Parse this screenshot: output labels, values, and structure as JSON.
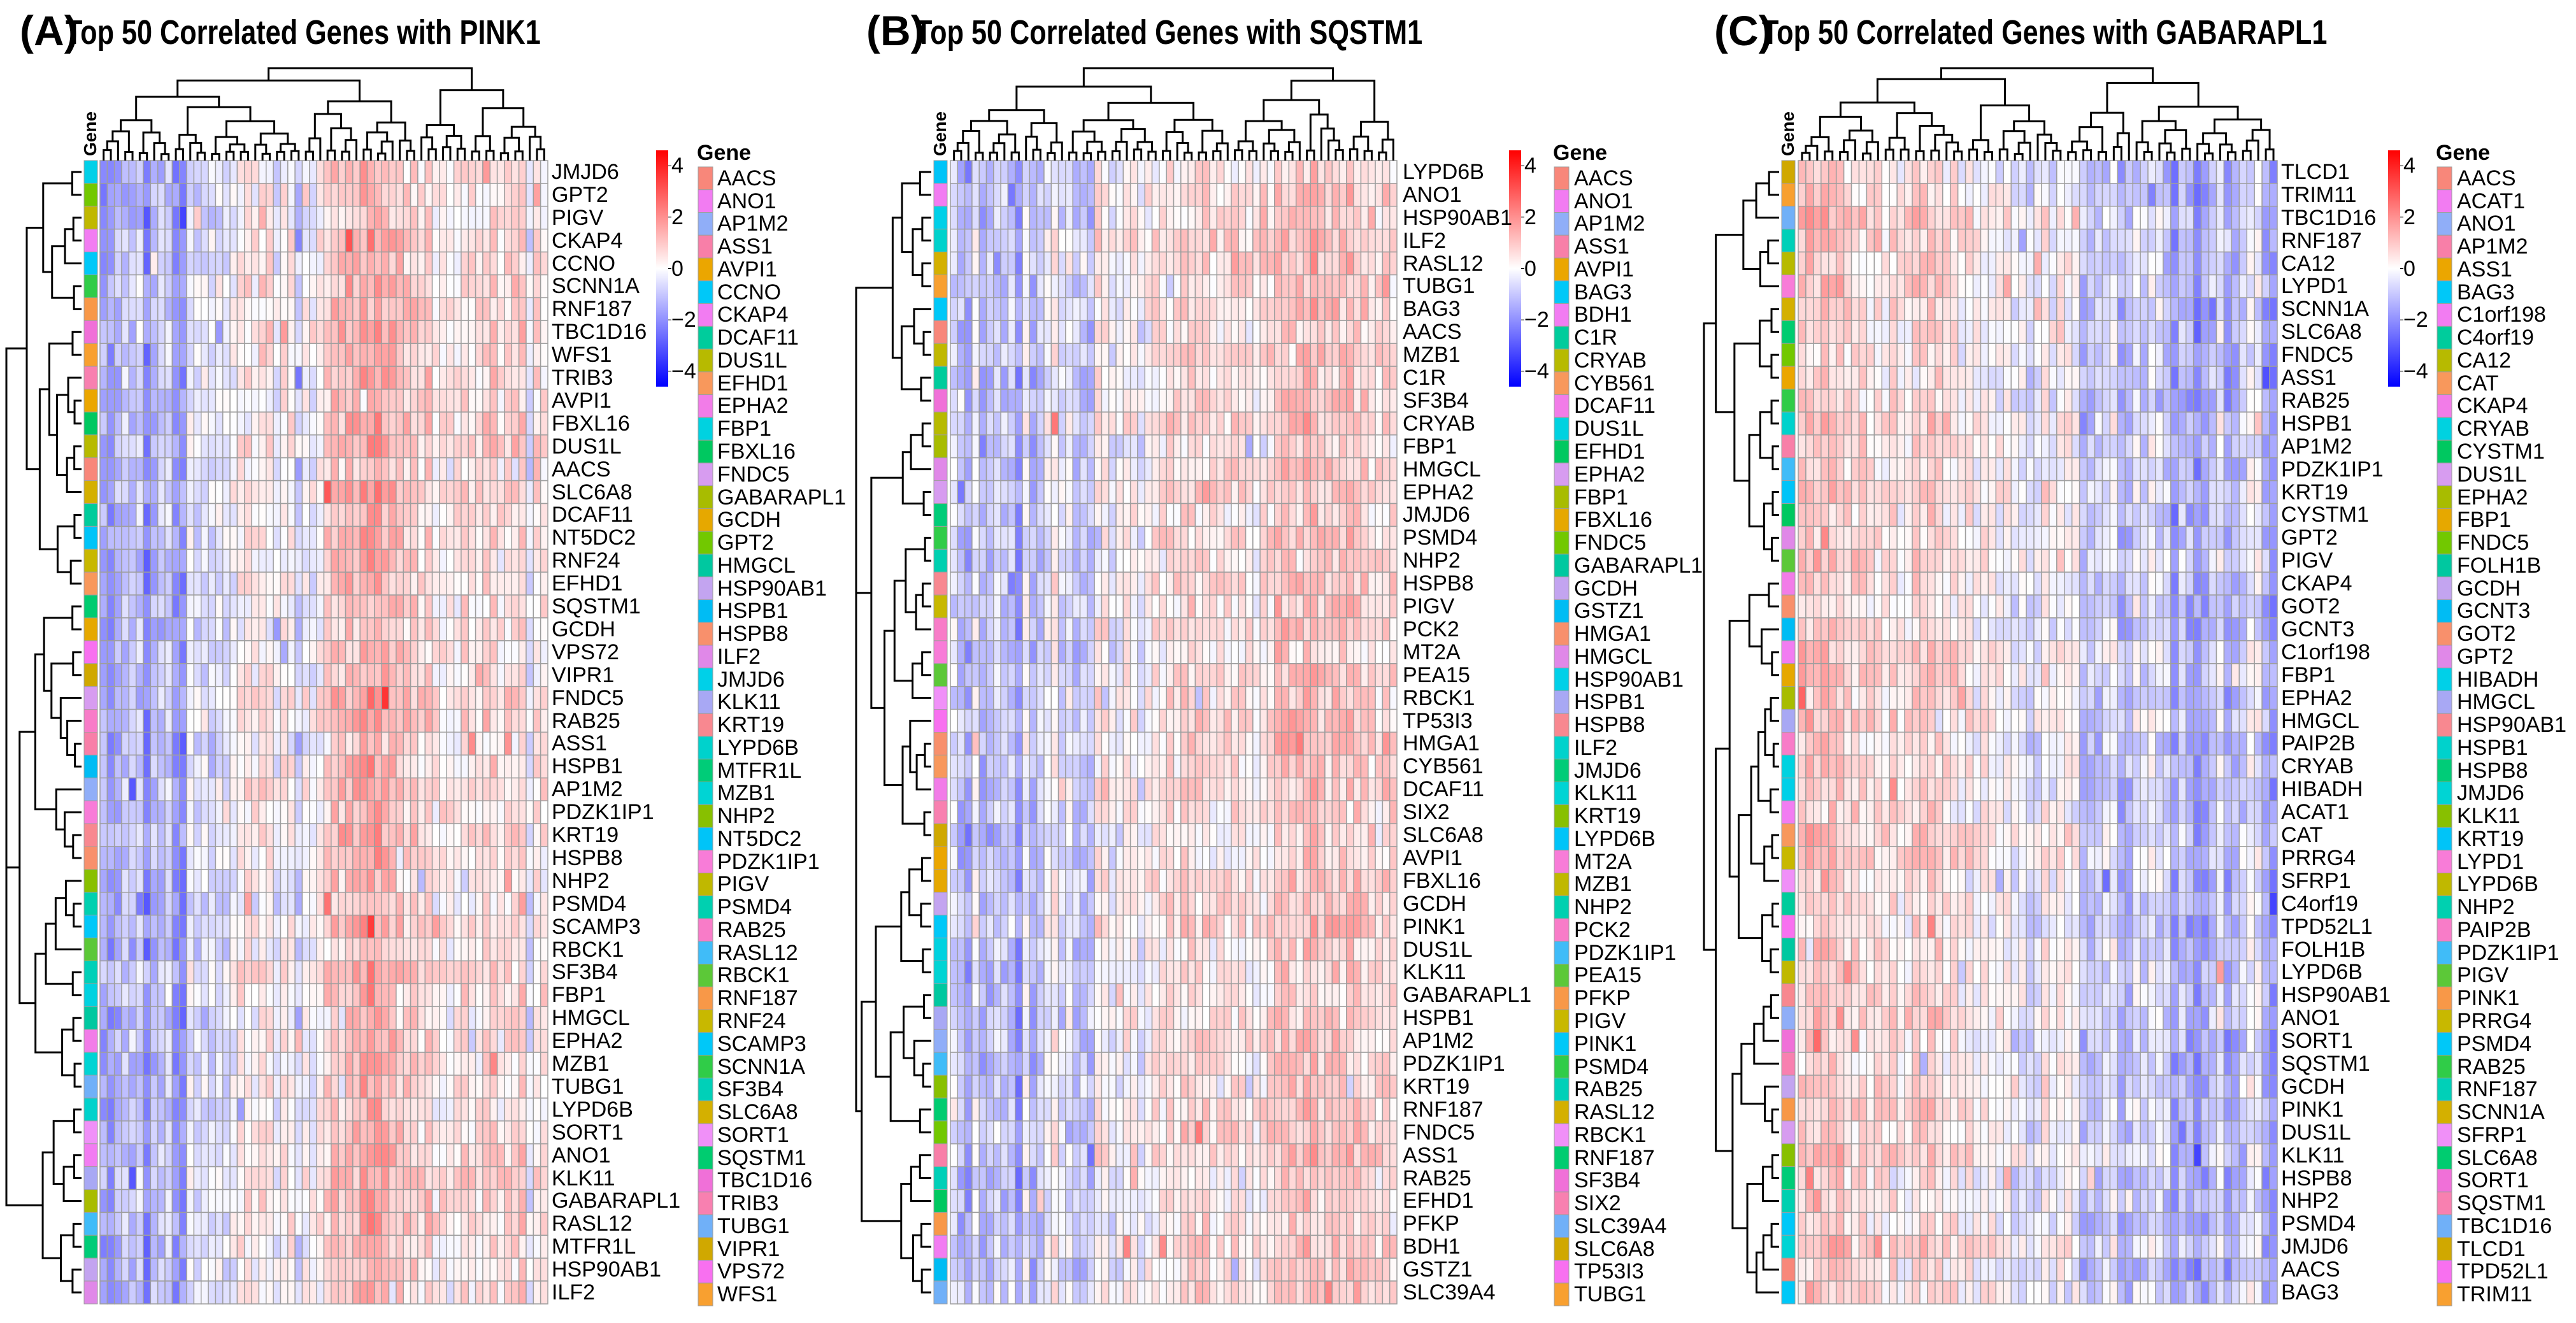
{
  "palette": [
    "#F8877A",
    "#F27CF2",
    "#90AEF8",
    "#F87FA8",
    "#EBA600",
    "#00C8F8",
    "#F27CF2",
    "#00CC9C",
    "#B7BA00",
    "#F8985C",
    "#F27CE8",
    "#00D2E0",
    "#00C860",
    "#D79CF0",
    "#A8BC00",
    "#E6A800",
    "#72C800",
    "#00C8A0",
    "#C3A4F0",
    "#00BCF4",
    "#F8906C",
    "#E088E8",
    "#00D0E8",
    "#A8A8F4",
    "#F88890",
    "#00D2CC",
    "#00CC78",
    "#00D4D4",
    "#88C000",
    "#00C4F8",
    "#F87CD8",
    "#C0B800",
    "#00D0B0",
    "#F87CC8",
    "#40BCF8",
    "#5CC838",
    "#F89848",
    "#C8B800",
    "#00C8F8",
    "#30CC48",
    "#00D0B8",
    "#D4B000",
    "#F090F8",
    "#00CC70",
    "#F070D8",
    "#F880B0",
    "#70B0F8",
    "#D0A800",
    "#F870F0",
    "#F8A030"
  ],
  "colorbar": {
    "ticks": [
      {
        "value": 4,
        "label": "4"
      },
      {
        "value": 2,
        "label": "2"
      },
      {
        "value": 0,
        "label": "0"
      },
      {
        "value": -2,
        "label": "−2"
      },
      {
        "value": -4,
        "label": "−4"
      }
    ],
    "range": [
      -4.6,
      4.6
    ],
    "low_color": "#0000FF",
    "mid_color": "#FFFFFF",
    "high_color": "#FF0000",
    "cell_border_color": "#9E9E9E"
  },
  "chart_data": [
    {
      "type": "heatmap",
      "letter": "(A)",
      "title": "Top 50 Correlated Genes with PINK1",
      "annotation_label": "Gene",
      "legend_title": "Gene",
      "column_count": 62,
      "rows": [
        "JMJD6",
        "GPT2",
        "PIGV",
        "CKAP4",
        "CCNO",
        "SCNN1A",
        "RNF187",
        "TBC1D16",
        "WFS1",
        "TRIB3",
        "AVPI1",
        "FBXL16",
        "DUS1L",
        "AACS",
        "SLC6A8",
        "DCAF11",
        "NT5DC2",
        "RNF24",
        "EFHD1",
        "SQSTM1",
        "GCDH",
        "VPS72",
        "VIPR1",
        "FNDC5",
        "RAB25",
        "ASS1",
        "HSPB1",
        "AP1M2",
        "PDZK1IP1",
        "KRT19",
        "HSPB8",
        "NHP2",
        "PSMD4",
        "SCAMP3",
        "RBCK1",
        "SF3B4",
        "FBP1",
        "HMGCL",
        "EPHA2",
        "MZB1",
        "TUBG1",
        "LYPD6B",
        "SORT1",
        "ANO1",
        "KLK11",
        "GABARAPL1",
        "RASL12",
        "MTFR1L",
        "HSP90AB1",
        "ILF2"
      ],
      "legend": [
        "AACS",
        "ANO1",
        "AP1M2",
        "ASS1",
        "AVPI1",
        "CCNO",
        "CKAP4",
        "DCAF11",
        "DUS1L",
        "EFHD1",
        "EPHA2",
        "FBP1",
        "FBXL16",
        "FNDC5",
        "GABARAPL1",
        "GCDH",
        "GPT2",
        "HMGCL",
        "HSP90AB1",
        "HSPB1",
        "HSPB8",
        "ILF2",
        "JMJD6",
        "KLK11",
        "KRT19",
        "LYPD6B",
        "MTFR1L",
        "MZB1",
        "NHP2",
        "NT5DC2",
        "PDZK1IP1",
        "PIGV",
        "PSMD4",
        "RAB25",
        "RASL12",
        "RBCK1",
        "RNF187",
        "RNF24",
        "SCAMP3",
        "SCNN1A",
        "SF3B4",
        "SLC6A8",
        "SORT1",
        "SQSTM1",
        "TBC1D16",
        "TRIB3",
        "TUBG1",
        "VIPR1",
        "VPS72",
        "WFS1"
      ],
      "column_mean_profile": [
        -1.6,
        -1.8,
        -1.4,
        -1.0,
        -1.2,
        -0.8,
        -2.2,
        -1.2,
        -1.0,
        -0.8,
        -1.8,
        -2.0,
        -0.3,
        -0.6,
        -0.4,
        -0.6,
        -0.3,
        -0.5,
        -0.2,
        0.3,
        0.4,
        0.2,
        0.5,
        0.3,
        -0.3,
        0.4,
        0.2,
        -0.8,
        0.1,
        -0.2,
        0.2,
        0.8,
        1.2,
        1.0,
        1.3,
        1.2,
        1.6,
        1.8,
        1.7,
        1.4,
        1.2,
        1.0,
        0.8,
        1.0,
        0.6,
        0.9,
        0.3,
        0.4,
        0.2,
        0.3,
        0.6,
        0.5,
        0.4,
        0.7,
        0.8,
        0.5,
        0.6,
        0.7,
        0.9,
        -0.6,
        0.5,
        0.4
      ]
    },
    {
      "type": "heatmap",
      "letter": "(B)",
      "title": "Top 50 Correlated Genes with SQSTM1",
      "annotation_label": "Gene",
      "legend_title": "Gene",
      "column_count": 62,
      "rows": [
        "LYPD6B",
        "ANO1",
        "HSP90AB1",
        "ILF2",
        "RASL12",
        "TUBG1",
        "BAG3",
        "AACS",
        "MZB1",
        "C1R",
        "SF3B4",
        "CRYAB",
        "FBP1",
        "HMGCL",
        "EPHA2",
        "JMJD6",
        "PSMD4",
        "NHP2",
        "HSPB8",
        "PIGV",
        "PCK2",
        "MT2A",
        "PEA15",
        "RBCK1",
        "TP53I3",
        "HMGA1",
        "CYB561",
        "DCAF11",
        "SIX2",
        "SLC6A8",
        "AVPI1",
        "FBXL16",
        "GCDH",
        "PINK1",
        "DUS1L",
        "KLK11",
        "GABARAPL1",
        "HSPB1",
        "AP1M2",
        "PDZK1IP1",
        "KRT19",
        "RNF187",
        "FNDC5",
        "ASS1",
        "RAB25",
        "EFHD1",
        "PFKP",
        "BDH1",
        "GSTZ1",
        "SLC39A4"
      ],
      "legend": [
        "AACS",
        "ANO1",
        "AP1M2",
        "ASS1",
        "AVPI1",
        "BAG3",
        "BDH1",
        "C1R",
        "CRYAB",
        "CYB561",
        "DCAF11",
        "DUS1L",
        "EFHD1",
        "EPHA2",
        "FBP1",
        "FBXL16",
        "FNDC5",
        "GABARAPL1",
        "GCDH",
        "GSTZ1",
        "HMGA1",
        "HMGCL",
        "HSP90AB1",
        "HSPB1",
        "HSPB8",
        "ILF2",
        "JMJD6",
        "KLK11",
        "KRT19",
        "LYPD6B",
        "MT2A",
        "MZB1",
        "NHP2",
        "PCK2",
        "PDZK1IP1",
        "PEA15",
        "PFKP",
        "PIGV",
        "PINK1",
        "PSMD4",
        "RAB25",
        "RASL12",
        "RBCK1",
        "RNF187",
        "SF3B4",
        "SIX2",
        "SLC39A4",
        "SLC6A8",
        "TP53I3",
        "TUBG1"
      ],
      "column_mean_profile": [
        -0.6,
        -1.2,
        -1.6,
        -0.4,
        -1.4,
        -1.2,
        -0.8,
        -1.0,
        -0.9,
        -2.0,
        -0.3,
        -1.4,
        -1.0,
        -0.4,
        0.2,
        -0.6,
        -0.3,
        -1.0,
        -1.0,
        -1.2,
        0.4,
        0.3,
        -0.3,
        -0.2,
        0.2,
        0.3,
        -0.4,
        0.1,
        0.4,
        0.3,
        0.6,
        0.5,
        0.7,
        0.8,
        0.6,
        0.7,
        0.3,
        0.5,
        0.4,
        0.6,
        0.5,
        0.3,
        0.2,
        0.4,
        0.6,
        1.0,
        1.1,
        1.0,
        0.9,
        1.2,
        1.3,
        0.8,
        0.9,
        1.0,
        0.8,
        1.1,
        0.9,
        0.8,
        0.6,
        0.5,
        0.7,
        0.5
      ]
    },
    {
      "type": "heatmap",
      "letter": "(C)",
      "title": "Top 50 Correlated Genes with GABARAPL1",
      "annotation_label": "Gene",
      "legend_title": "Gene",
      "column_count": 63,
      "rows": [
        "TLCD1",
        "TRIM11",
        "TBC1D16",
        "RNF187",
        "CA12",
        "LYPD1",
        "SCNN1A",
        "SLC6A8",
        "FNDC5",
        "ASS1",
        "RAB25",
        "HSPB1",
        "AP1M2",
        "PDZK1IP1",
        "KRT19",
        "CYSTM1",
        "GPT2",
        "PIGV",
        "CKAP4",
        "GOT2",
        "GCNT3",
        "C1orf198",
        "FBP1",
        "EPHA2",
        "HMGCL",
        "PAIP2B",
        "CRYAB",
        "HIBADH",
        "ACAT1",
        "CAT",
        "PRRG4",
        "SFRP1",
        "C4orf19",
        "TPD52L1",
        "FOLH1B",
        "LYPD6B",
        "HSP90AB1",
        "ANO1",
        "SORT1",
        "SQSTM1",
        "GCDH",
        "PINK1",
        "DUS1L",
        "KLK11",
        "HSPB8",
        "NHP2",
        "PSMD4",
        "JMJD6",
        "AACS",
        "BAG3"
      ],
      "legend": [
        "AACS",
        "ACAT1",
        "ANO1",
        "AP1M2",
        "ASS1",
        "BAG3",
        "C1orf198",
        "C4orf19",
        "CA12",
        "CAT",
        "CKAP4",
        "CRYAB",
        "CYSTM1",
        "DUS1L",
        "EPHA2",
        "FBP1",
        "FNDC5",
        "FOLH1B",
        "GCDH",
        "GCNT3",
        "GOT2",
        "GPT2",
        "HIBADH",
        "HMGCL",
        "HSP90AB1",
        "HSPB1",
        "HSPB8",
        "JMJD6",
        "KLK11",
        "KRT19",
        "LYPD1",
        "LYPD6B",
        "NHP2",
        "PAIP2B",
        "PDZK1IP1",
        "PIGV",
        "PINK1",
        "PRRG4",
        "PSMD4",
        "RAB25",
        "RNF187",
        "SCNN1A",
        "SFRP1",
        "SLC6A8",
        "SORT1",
        "SQSTM1",
        "TBC1D16",
        "TLCD1",
        "TPD52L1",
        "TRIM11"
      ],
      "column_mean_profile": [
        1.0,
        1.1,
        1.0,
        1.2,
        1.0,
        1.1,
        0.8,
        0.6,
        0.7,
        0.5,
        0.6,
        0.4,
        0.7,
        0.3,
        0.4,
        0.9,
        0.8,
        0.9,
        0.8,
        0.5,
        0.6,
        0.2,
        0.4,
        0.1,
        0.3,
        0.2,
        0.0,
        0.1,
        -0.3,
        -0.2,
        -0.6,
        -0.4,
        0.3,
        -0.2,
        0.3,
        0.2,
        -0.1,
        -1.2,
        -1.0,
        -1.0,
        -0.6,
        -0.2,
        -1.3,
        -1.2,
        -0.5,
        -0.8,
        -0.3,
        -0.6,
        -0.9,
        -1.8,
        -1.0,
        -1.4,
        -2.0,
        -1.5,
        -1.0,
        -0.3,
        -1.6,
        -1.2,
        -0.8,
        -0.2,
        -0.4,
        -1.5,
        -1.8
      ]
    }
  ]
}
